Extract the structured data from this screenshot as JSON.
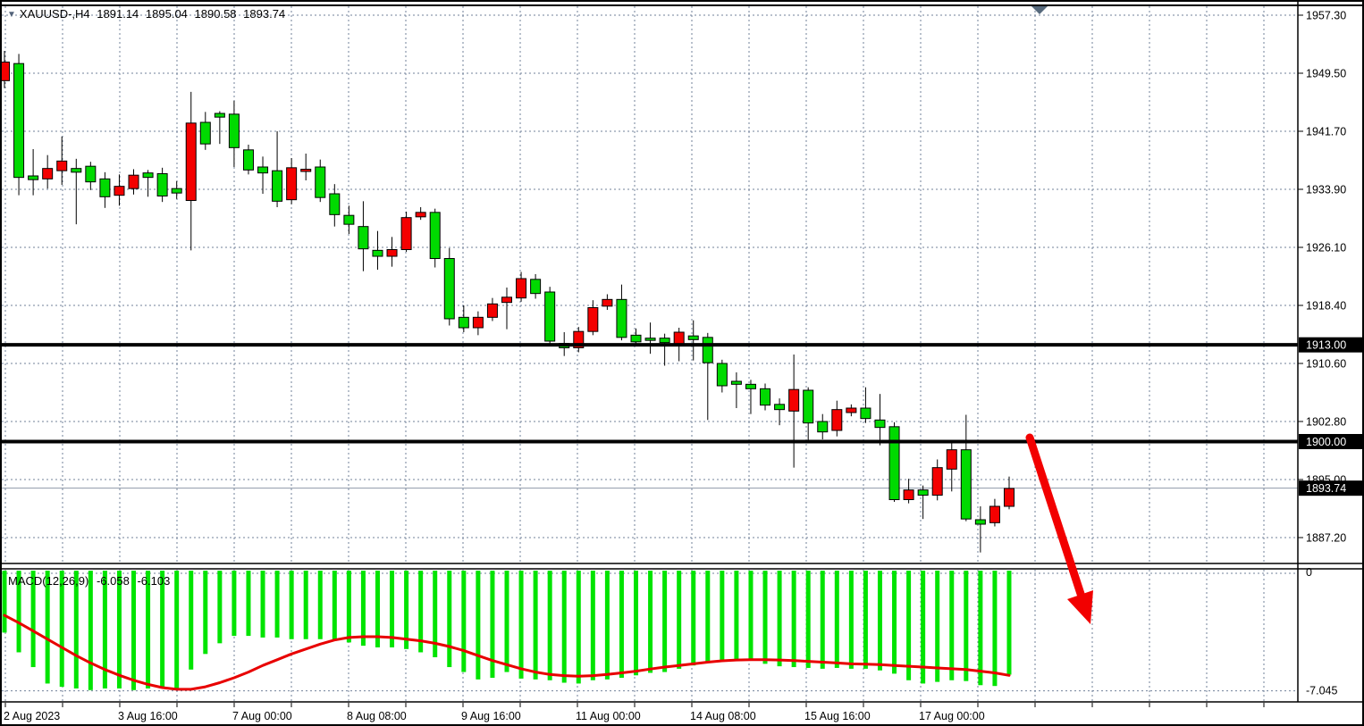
{
  "title": {
    "symbol_period": "XAUUSD-,H4",
    "open": "1891.14",
    "high": "1895.04",
    "low": "1890.58",
    "close": "1893.74"
  },
  "macd_label": {
    "name": "MACD(12,26,9)",
    "main_value": "-6.058",
    "signal_value": "-6.103"
  },
  "colors": {
    "bull": "#00da00",
    "bear": "#f40000",
    "outline": "#000000",
    "grid": "#70809a",
    "macd_bar": "#00e400",
    "macd_signal": "#e80000",
    "arrow": "#f20000",
    "hline": "#000000",
    "current_price_line": "#8e9aa8",
    "badge_bg": "#000000",
    "badge_text": "#ffffff",
    "marker": "#56697c"
  },
  "chart_data": {
    "type": "candlestick",
    "symbol": "XAUUSD-",
    "timeframe": "H4",
    "price_axis": {
      "labels": [
        "1957.30",
        "1949.50",
        "1941.70",
        "1933.90",
        "1926.10",
        "1918.40",
        "1910.60",
        "1902.80",
        "1895.00",
        "1887.20"
      ],
      "top_value": 1957.3,
      "step": 7.8,
      "badges": [
        {
          "text": "1913.00",
          "price": 1913.0
        },
        {
          "text": "1900.00",
          "price": 1900.0
        },
        {
          "text": "1893.74",
          "price": 1893.74
        }
      ]
    },
    "time_axis": {
      "labels": [
        "2 Aug 2023",
        "3 Aug 16:00",
        "7 Aug 00:00",
        "8 Aug 08:00",
        "9 Aug 16:00",
        "11 Aug 00:00",
        "14 Aug 08:00",
        "15 Aug 16:00",
        "17 Aug 00:00"
      ]
    },
    "hlines": [
      1913.0,
      1900.0
    ],
    "current_price": 1893.74,
    "candles": [
      [
        1951.0,
        1952.5,
        1947.5,
        1948.5
      ],
      [
        1935.5,
        1952.1,
        1933.1,
        1950.8
      ],
      [
        1935.2,
        1939.3,
        1933.1,
        1935.7
      ],
      [
        1936.7,
        1938.5,
        1934.0,
        1935.3
      ],
      [
        1937.7,
        1941.0,
        1934.5,
        1936.4
      ],
      [
        1936.2,
        1938.0,
        1929.2,
        1936.7
      ],
      [
        1934.9,
        1937.6,
        1933.8,
        1937.0
      ],
      [
        1932.9,
        1936.2,
        1931.4,
        1935.3
      ],
      [
        1934.3,
        1935.9,
        1931.7,
        1933.1
      ],
      [
        1935.8,
        1936.6,
        1933.2,
        1934.0
      ],
      [
        1935.5,
        1936.5,
        1932.9,
        1936.1
      ],
      [
        1933.0,
        1936.8,
        1932.2,
        1936.0
      ],
      [
        1933.4,
        1935.0,
        1932.6,
        1934.0
      ],
      [
        1942.8,
        1947.0,
        1925.7,
        1932.4
      ],
      [
        1940.0,
        1944.3,
        1939.2,
        1942.9
      ],
      [
        1943.6,
        1944.4,
        1940.0,
        1944.1
      ],
      [
        1939.5,
        1945.8,
        1936.9,
        1944.0
      ],
      [
        1936.5,
        1939.9,
        1935.9,
        1939.2
      ],
      [
        1936.1,
        1938.3,
        1933.3,
        1936.9
      ],
      [
        1932.3,
        1941.7,
        1931.5,
        1936.4
      ],
      [
        1936.8,
        1938.1,
        1931.9,
        1932.5
      ],
      [
        1936.6,
        1938.7,
        1935.1,
        1936.3
      ],
      [
        1932.8,
        1937.9,
        1932.2,
        1936.9
      ],
      [
        1930.5,
        1934.6,
        1928.9,
        1933.3
      ],
      [
        1929.2,
        1931.7,
        1927.9,
        1930.4
      ],
      [
        1925.9,
        1932.3,
        1922.9,
        1928.9
      ],
      [
        1924.9,
        1928.3,
        1923.1,
        1925.7
      ],
      [
        1925.8,
        1927.5,
        1923.5,
        1924.9
      ],
      [
        1930.1,
        1930.9,
        1925.5,
        1925.8
      ],
      [
        1930.8,
        1931.5,
        1929.8,
        1930.2
      ],
      [
        1924.6,
        1931.3,
        1923.4,
        1930.8
      ],
      [
        1916.5,
        1926.0,
        1915.6,
        1924.6
      ],
      [
        1915.3,
        1918.3,
        1914.7,
        1916.7
      ],
      [
        1916.7,
        1917.5,
        1914.3,
        1915.3
      ],
      [
        1918.5,
        1919.3,
        1916.2,
        1916.7
      ],
      [
        1919.4,
        1920.7,
        1915.1,
        1918.7
      ],
      [
        1921.9,
        1922.8,
        1918.8,
        1919.3
      ],
      [
        1919.9,
        1922.5,
        1919.2,
        1921.8
      ],
      [
        1913.5,
        1920.8,
        1912.8,
        1920.1
      ],
      [
        1912.6,
        1914.7,
        1911.5,
        1913.2
      ],
      [
        1914.8,
        1915.4,
        1912.0,
        1912.6
      ],
      [
        1918.0,
        1919.0,
        1914.3,
        1914.8
      ],
      [
        1919.1,
        1919.8,
        1917.7,
        1918.2
      ],
      [
        1914.0,
        1921.1,
        1913.6,
        1919.1
      ],
      [
        1913.4,
        1915.2,
        1912.8,
        1914.3
      ],
      [
        1913.6,
        1916.0,
        1911.8,
        1913.9
      ],
      [
        1913.3,
        1914.5,
        1910.2,
        1913.9
      ],
      [
        1914.7,
        1915.3,
        1910.8,
        1912.9
      ],
      [
        1913.7,
        1916.3,
        1910.9,
        1914.2
      ],
      [
        1910.6,
        1914.6,
        1902.9,
        1914.0
      ],
      [
        1907.5,
        1911.0,
        1906.6,
        1910.5
      ],
      [
        1907.7,
        1909.3,
        1904.5,
        1908.1
      ],
      [
        1907.1,
        1908.3,
        1903.7,
        1907.7
      ],
      [
        1904.9,
        1907.8,
        1904.2,
        1907.1
      ],
      [
        1904.3,
        1905.8,
        1902.2,
        1905.0
      ],
      [
        1907.0,
        1911.7,
        1896.5,
        1904.1
      ],
      [
        1902.5,
        1907.3,
        1899.9,
        1906.9
      ],
      [
        1901.3,
        1903.7,
        1900.3,
        1902.7
      ],
      [
        1904.3,
        1905.5,
        1900.7,
        1901.5
      ],
      [
        1904.5,
        1905.0,
        1903.4,
        1903.9
      ],
      [
        1903.1,
        1907.3,
        1902.5,
        1904.5
      ],
      [
        1901.9,
        1906.4,
        1899.5,
        1902.9
      ],
      [
        1892.2,
        1902.6,
        1891.9,
        1902.0
      ],
      [
        1893.5,
        1895.0,
        1891.7,
        1892.2
      ],
      [
        1892.8,
        1894.1,
        1889.6,
        1893.5
      ],
      [
        1896.5,
        1897.6,
        1892.1,
        1892.8
      ],
      [
        1898.9,
        1899.9,
        1893.3,
        1896.3
      ],
      [
        1889.6,
        1903.6,
        1889.3,
        1898.9
      ],
      [
        1888.9,
        1891.3,
        1885.1,
        1889.5
      ],
      [
        1891.3,
        1892.3,
        1888.6,
        1889.1
      ],
      [
        1893.7,
        1895.3,
        1890.9,
        1891.3
      ]
    ],
    "macd": {
      "axis_max_label": "0",
      "axis_min_label": "-7.045",
      "min": -7.045,
      "histogram": [
        -3.5,
        -4.7,
        -5.6,
        -6.6,
        -6.8,
        -6.9,
        -7.0,
        -6.9,
        -6.9,
        -7.0,
        -6.9,
        -6.85,
        -6.95,
        -5.75,
        -4.8,
        -4.15,
        -3.7,
        -3.7,
        -3.8,
        -3.8,
        -3.9,
        -3.9,
        -3.9,
        -4.0,
        -4.1,
        -4.3,
        -4.4,
        -4.4,
        -4.5,
        -4.7,
        -5.0,
        -5.6,
        -5.9,
        -6.35,
        -6.25,
        -5.9,
        -6.3,
        -6.35,
        -6.4,
        -6.55,
        -6.6,
        -6.4,
        -6.35,
        -6.25,
        -6.1,
        -5.95,
        -5.9,
        -5.7,
        -5.5,
        -5.3,
        -5.2,
        -5.2,
        -5.2,
        -5.4,
        -5.55,
        -5.6,
        -5.65,
        -5.7,
        -5.65,
        -5.7,
        -5.7,
        -5.8,
        -6.0,
        -6.4,
        -6.6,
        -6.5,
        -6.4,
        -6.45,
        -6.7,
        -6.75,
        -6.058
      ],
      "signal": [
        -2.45,
        -2.9,
        -3.4,
        -3.9,
        -4.4,
        -4.9,
        -5.35,
        -5.75,
        -6.1,
        -6.4,
        -6.65,
        -6.85,
        -6.95,
        -6.95,
        -6.8,
        -6.55,
        -6.25,
        -5.9,
        -5.5,
        -5.15,
        -4.8,
        -4.5,
        -4.2,
        -3.95,
        -3.8,
        -3.75,
        -3.75,
        -3.8,
        -3.9,
        -4.0,
        -4.15,
        -4.35,
        -4.6,
        -4.9,
        -5.2,
        -5.45,
        -5.7,
        -5.9,
        -6.05,
        -6.12,
        -6.15,
        -6.12,
        -6.05,
        -5.95,
        -5.85,
        -5.72,
        -5.6,
        -5.5,
        -5.4,
        -5.3,
        -5.22,
        -5.17,
        -5.15,
        -5.15,
        -5.17,
        -5.2,
        -5.25,
        -5.3,
        -5.35,
        -5.4,
        -5.42,
        -5.45,
        -5.5,
        -5.55,
        -5.6,
        -5.65,
        -5.7,
        -5.75,
        -5.85,
        -5.95,
        -6.103
      ],
      "annotation_arrow": {
        "direction": "down",
        "from_price": 1900.0,
        "note": "red down arrow drawn from the 1900.00 line into the lower-right area"
      }
    }
  }
}
